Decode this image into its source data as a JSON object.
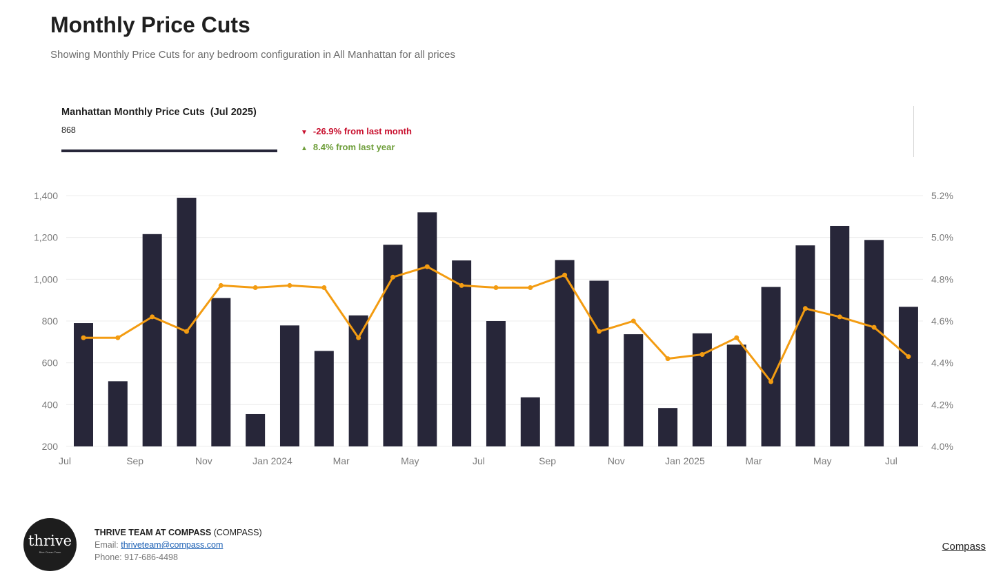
{
  "header": {
    "title": "Monthly Price Cuts",
    "subtitle": "Showing Monthly Price Cuts for any bedroom configuration in All Manhattan for all prices"
  },
  "stat": {
    "label": "Manhattan Monthly Price Cuts  (Jul 2025)",
    "value": "868",
    "change_month": "-26.9% from last month",
    "change_year": "8.4% from last year",
    "down_color": "#c8102e",
    "up_color": "#6e9e3a"
  },
  "chart_data": {
    "type": "bar",
    "x": [
      "Jul 2023",
      "Aug 2023",
      "Sep 2023",
      "Oct 2023",
      "Nov 2023",
      "Dec 2023",
      "Jan 2024",
      "Feb 2024",
      "Mar 2024",
      "Apr 2024",
      "May 2024",
      "Jun 2024",
      "Jul 2024",
      "Aug 2024",
      "Sep 2024",
      "Oct 2024",
      "Nov 2024",
      "Dec 2024",
      "Jan 2025",
      "Feb 2025",
      "Mar 2025",
      "Apr 2025",
      "May 2025",
      "Jun 2025",
      "Jul 2025"
    ],
    "x_tick_labels": [
      "Jul",
      "Sep",
      "Nov",
      "Jan 2024",
      "Mar",
      "May",
      "Jul",
      "Sep",
      "Nov",
      "Jan 2025",
      "Mar",
      "May",
      "Jul"
    ],
    "series": [
      {
        "kind": "bar",
        "axis": "left",
        "color": "#272639",
        "values": [
          790,
          512,
          1216,
          1390,
          910,
          355,
          779,
          657,
          827,
          1165,
          1320,
          1090,
          800,
          435,
          1092,
          993,
          737,
          384,
          741,
          687,
          963,
          1162,
          1255,
          1188,
          868
        ]
      },
      {
        "kind": "line",
        "axis": "right",
        "color": "#f39c12",
        "values": [
          4.52,
          4.52,
          4.62,
          4.55,
          4.77,
          4.76,
          4.77,
          4.76,
          4.52,
          4.81,
          4.86,
          4.77,
          4.76,
          4.76,
          4.82,
          4.55,
          4.6,
          4.42,
          4.44,
          4.52,
          4.31,
          4.66,
          4.62,
          4.57,
          4.43
        ]
      }
    ],
    "y_left": {
      "lim": [
        200,
        1400
      ],
      "ticks": [
        "1,400",
        "1,200",
        "1,000",
        "800",
        "600",
        "400",
        "200"
      ]
    },
    "y_right": {
      "lim": [
        4.0,
        5.2
      ],
      "ticks": [
        "5.2%",
        "5.0%",
        "4.8%",
        "4.6%",
        "4.4%",
        "4.2%",
        "4.0%"
      ]
    },
    "grid": true,
    "legend": "none"
  },
  "footer": {
    "logo_text": "thrive",
    "logo_tagline": "Blue Ocean Team",
    "agent_name": "THRIVE TEAM AT COMPASS",
    "agent_company": "(COMPASS)",
    "email_label": "Email:",
    "email": "thriveteam@compass.com",
    "phone_label": "Phone:",
    "phone": "917-686-4498",
    "brand_link": "Compass"
  }
}
